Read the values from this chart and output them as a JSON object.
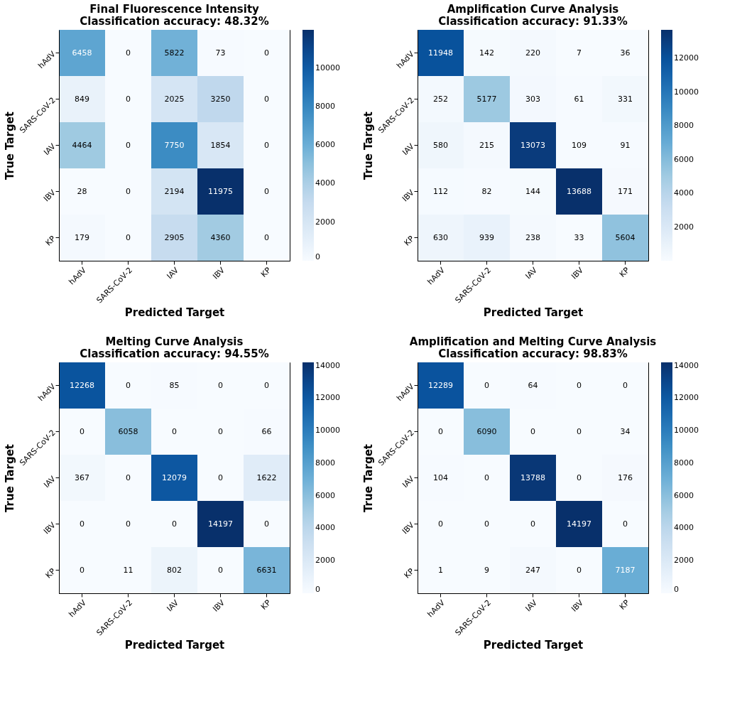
{
  "chart_data": [
    {
      "type": "heatmap",
      "title": "Final Fluorescence Intensity",
      "subtitle": "Classification accuracy: 48.32%",
      "xlabel": "Predicted Target",
      "ylabel": "True Target",
      "categories": [
        "hAdV",
        "SARS-CoV-2",
        "IAV",
        "IBV",
        "KP"
      ],
      "y_categories": [
        "hAdV",
        "SARS-CoV-2",
        "IAV",
        "IBV",
        "KP"
      ],
      "cells": [
        [
          6458,
          0,
          5822,
          73,
          0
        ],
        [
          849,
          0,
          2025,
          3250,
          0
        ],
        [
          4464,
          0,
          7750,
          1854,
          0
        ],
        [
          28,
          0,
          2194,
          11975,
          0
        ],
        [
          179,
          0,
          2905,
          4360,
          0
        ]
      ],
      "data_labels": true,
      "clim": [
        0,
        11975
      ],
      "cticks": [
        0,
        2000,
        4000,
        6000,
        8000,
        10000
      ]
    },
    {
      "type": "heatmap",
      "title": "Amplification Curve Analysis",
      "subtitle": "Classification accuracy: 91.33%",
      "xlabel": "Predicted Target",
      "ylabel": "True Target",
      "categories": [
        "hAdV",
        "SARS-CoV-2",
        "IAV",
        "IBV",
        "KP"
      ],
      "y_categories": [
        "hAdV",
        "SARS-CoV-2",
        "IAV",
        "IBV",
        "KP"
      ],
      "cells": [
        [
          11948,
          142,
          220,
          7,
          36
        ],
        [
          252,
          5177,
          303,
          61,
          331
        ],
        [
          580,
          215,
          13073,
          109,
          91
        ],
        [
          112,
          82,
          144,
          13688,
          171
        ],
        [
          630,
          939,
          238,
          33,
          5604
        ]
      ],
      "data_labels": true,
      "clim": [
        7,
        13688
      ],
      "cticks": [
        2000,
        4000,
        6000,
        8000,
        10000,
        12000
      ]
    },
    {
      "type": "heatmap",
      "title": "Melting Curve Analysis",
      "subtitle": "Classification accuracy: 94.55%",
      "xlabel": "Predicted Target",
      "ylabel": "True Target",
      "categories": [
        "hAdV",
        "SARS-CoV-2",
        "IAV",
        "IBV",
        "KP"
      ],
      "y_categories": [
        "hAdV",
        "SARS-CoV-2",
        "IAV",
        "IBV",
        "KP"
      ],
      "cells": [
        [
          12268,
          0,
          85,
          0,
          0
        ],
        [
          0,
          6058,
          0,
          0,
          66
        ],
        [
          367,
          0,
          12079,
          0,
          1622
        ],
        [
          0,
          0,
          0,
          14197,
          0
        ],
        [
          0,
          11,
          802,
          0,
          6631
        ]
      ],
      "data_labels": true,
      "clim": [
        0,
        14197
      ],
      "cticks": [
        0,
        2000,
        4000,
        6000,
        8000,
        10000,
        12000,
        14000
      ]
    },
    {
      "type": "heatmap",
      "title": "Amplification and Melting Curve Analysis",
      "subtitle": "Classification accuracy: 98.83%",
      "xlabel": "Predicted Target",
      "ylabel": "True Target",
      "categories": [
        "hAdV",
        "SARS-CoV-2",
        "IAV",
        "IBV",
        "KP"
      ],
      "y_categories": [
        "hAdV",
        "SARS-CoV-2",
        "IAV",
        "IBV",
        "KP"
      ],
      "cells": [
        [
          12289,
          0,
          64,
          0,
          0
        ],
        [
          0,
          6090,
          0,
          0,
          34
        ],
        [
          104,
          0,
          13788,
          0,
          176
        ],
        [
          0,
          0,
          0,
          14197,
          0
        ],
        [
          1,
          9,
          247,
          0,
          7187
        ]
      ],
      "data_labels": true,
      "clim": [
        0,
        14197
      ],
      "cticks": [
        0,
        2000,
        4000,
        6000,
        8000,
        10000,
        12000,
        14000
      ]
    }
  ]
}
